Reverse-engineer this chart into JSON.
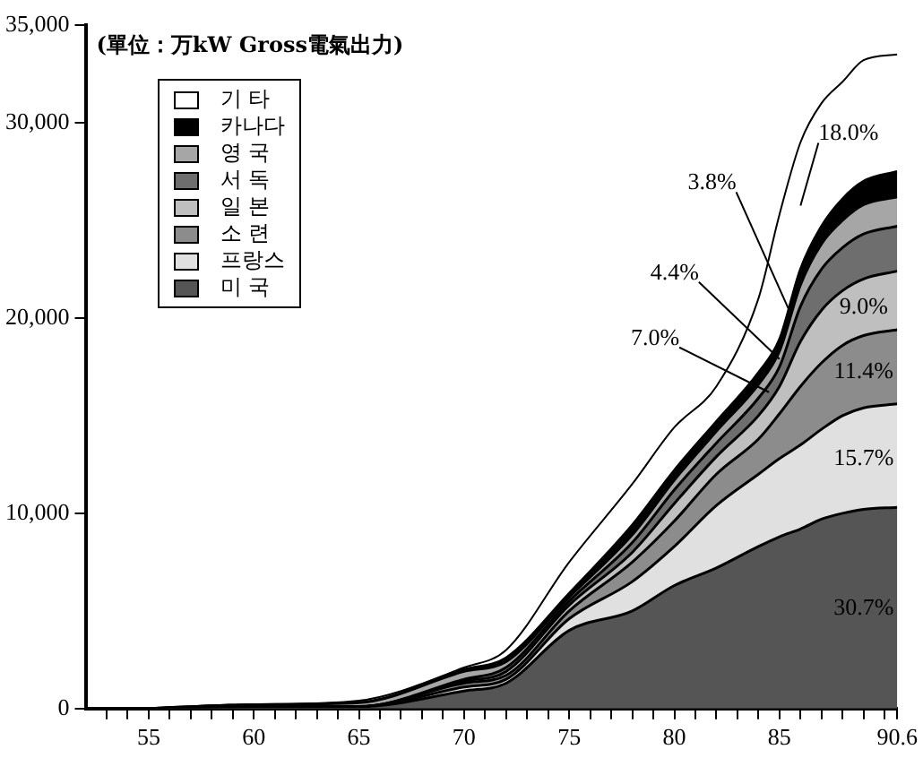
{
  "chart_data": {
    "type": "area",
    "stacked": true,
    "subtitle": "(單位：万kW Gross電氣出力)",
    "x": [
      55,
      60,
      65,
      70,
      72,
      75,
      78,
      80,
      82,
      84,
      85,
      86,
      87,
      88,
      89,
      90.6
    ],
    "xlim": [
      52,
      90.6
    ],
    "xticks": [
      {
        "value": 53,
        "label": null
      },
      {
        "value": 54,
        "label": null
      },
      55,
      {
        "value": 56,
        "label": null
      },
      {
        "value": 57,
        "label": null
      },
      {
        "value": 58,
        "label": null
      },
      {
        "value": 59,
        "label": null
      },
      60,
      {
        "value": 61,
        "label": null
      },
      {
        "value": 62,
        "label": null
      },
      {
        "value": 63,
        "label": null
      },
      {
        "value": 64,
        "label": null
      },
      65,
      {
        "value": 66,
        "label": null
      },
      {
        "value": 67,
        "label": null
      },
      {
        "value": 68,
        "label": null
      },
      {
        "value": 69,
        "label": null
      },
      70,
      {
        "value": 71,
        "label": null
      },
      {
        "value": 72,
        "label": null
      },
      {
        "value": 73,
        "label": null
      },
      {
        "value": 74,
        "label": null
      },
      75,
      {
        "value": 76,
        "label": null
      },
      {
        "value": 77,
        "label": null
      },
      {
        "value": 78,
        "label": null
      },
      {
        "value": 79,
        "label": null
      },
      80,
      {
        "value": 81,
        "label": null
      },
      {
        "value": 82,
        "label": null
      },
      {
        "value": 83,
        "label": null
      },
      {
        "value": 84,
        "label": null
      },
      85,
      {
        "value": 86,
        "label": null
      },
      {
        "value": 87,
        "label": null
      },
      {
        "value": 88,
        "label": null
      },
      {
        "value": 89,
        "label": null
      },
      {
        "value": 90,
        "label": null
      },
      90.6
    ],
    "ylim": [
      0,
      35000
    ],
    "yticks": [
      0,
      {
        "value": 10000,
        "label": "10,000"
      },
      {
        "value": 20000,
        "label": "20,000"
      },
      {
        "value": 30000,
        "label": "30,000"
      },
      {
        "value": 35000,
        "label": "35,000"
      }
    ],
    "grid": false,
    "legend": "top left",
    "series": [
      {
        "name": "미 국",
        "color": "#555555",
        "values": [
          0,
          100,
          100,
          900,
          1300,
          4000,
          5000,
          6300,
          7200,
          8300,
          8800,
          9200,
          9700,
          10000,
          10200,
          10300
        ]
      },
      {
        "name": "프랑스",
        "color": "#e0e0e0",
        "values": [
          0,
          0,
          0,
          200,
          200,
          600,
          1500,
          2000,
          3200,
          3700,
          4000,
          4300,
          4600,
          5000,
          5200,
          5300
        ]
      },
      {
        "name": "소 련",
        "color": "#8c8c8c",
        "values": [
          0,
          0,
          0,
          200,
          200,
          400,
          1000,
          1300,
          1600,
          1800,
          2300,
          3000,
          3400,
          3600,
          3700,
          3800
        ]
      },
      {
        "name": "일 본",
        "color": "#bfbfbf",
        "values": [
          0,
          0,
          0,
          100,
          200,
          300,
          500,
          900,
          900,
          1200,
          1400,
          2300,
          2700,
          2800,
          2900,
          3000
        ]
      },
      {
        "name": "서 독",
        "color": "#6e6e6e",
        "values": [
          0,
          0,
          0,
          100,
          200,
          200,
          500,
          700,
          700,
          900,
          1000,
          1800,
          2100,
          2200,
          2300,
          2300
        ]
      },
      {
        "name": "영 국",
        "color": "#a6a6a6",
        "values": [
          0,
          100,
          200,
          400,
          300,
          200,
          400,
          500,
          600,
          700,
          800,
          1100,
          1300,
          1400,
          1500,
          1500
        ]
      },
      {
        "name": "카나다",
        "color": "#000000",
        "values": [
          0,
          0,
          0,
          100,
          200,
          200,
          500,
          500,
          500,
          600,
          600,
          800,
          900,
          1100,
          1200,
          1300
        ]
      },
      {
        "name": "기 타",
        "color": "#ffffff",
        "values": [
          0,
          0,
          100,
          100,
          400,
          1600,
          2100,
          2200,
          1800,
          3800,
          6400,
          6500,
          6300,
          6000,
          6200,
          6000
        ]
      }
    ],
    "annotations": [
      "30.7%",
      "15.7%",
      "11.4%",
      "9.0%",
      {
        "text": "7.0%",
        "x": 84.5,
        "y": 16200
      },
      {
        "text": "4.4%",
        "x": 85,
        "y": 17900
      },
      {
        "text": "3.8%",
        "x": 85.5,
        "y": 20300
      },
      "18.0%"
    ]
  }
}
